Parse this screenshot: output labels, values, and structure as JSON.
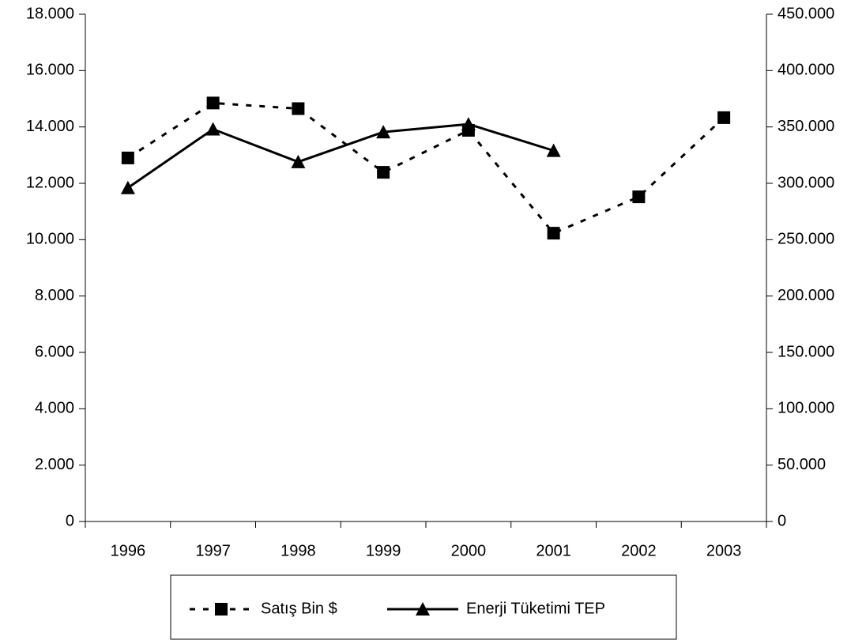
{
  "chart_data": {
    "type": "line",
    "categories": [
      "1996",
      "1997",
      "1998",
      "1999",
      "2000",
      "2001",
      "2002",
      "2003"
    ],
    "series": [
      {
        "name": "Satış Bin $",
        "color": "#000000",
        "line_style": "dashed",
        "marker": "square",
        "values": [
          12900,
          14850,
          14650,
          12390,
          13880,
          10230,
          11520,
          14330
        ]
      },
      {
        "name": "Enerji Tüketimi TEP",
        "color": "#000000",
        "line_style": "solid",
        "marker": "triangle",
        "axis": "y2",
        "values": [
          296000,
          348000,
          319000,
          345500,
          352500,
          329000,
          null,
          null
        ]
      }
    ],
    "ylim": [
      0,
      18000
    ],
    "yticks": [
      0,
      {
        "value": 2000,
        "label": "2.000"
      },
      {
        "value": 4000,
        "label": "4.000"
      },
      {
        "value": 6000,
        "label": "6.000"
      },
      {
        "value": 8000,
        "label": "8.000"
      },
      {
        "value": 10000,
        "label": "10.000"
      },
      {
        "value": 12000,
        "label": "12.000"
      },
      {
        "value": 14000,
        "label": "14.000"
      },
      {
        "value": 16000,
        "label": "16.000"
      },
      {
        "value": 18000,
        "label": "18.000"
      }
    ],
    "y2lim": [
      0,
      450000
    ],
    "y2ticks": [
      0,
      {
        "value": 50000,
        "label": "50.000"
      },
      {
        "value": 100000,
        "label": "100.000"
      },
      {
        "value": 150000,
        "label": "150.000"
      },
      {
        "value": 200000,
        "label": "200.000"
      },
      {
        "value": 250000,
        "label": "250.000"
      },
      {
        "value": 300000,
        "label": "300.000"
      },
      {
        "value": 350000,
        "label": "350.000"
      },
      {
        "value": 400000,
        "label": "400.000"
      },
      {
        "value": 450000,
        "label": "450.000"
      }
    ],
    "grid": false,
    "legend": "bottom"
  }
}
